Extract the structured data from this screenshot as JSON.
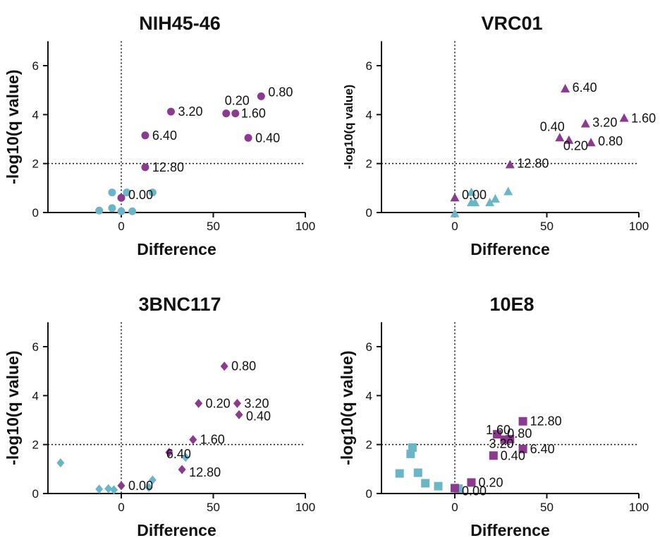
{
  "colors": {
    "significant": "#8B3A8F",
    "nonsignificant": "#6BB6C6"
  },
  "chart_data": [
    {
      "type": "scatter",
      "title": "NIH45-46",
      "xlabel": "Difference",
      "ylabel": "-log10(q value)",
      "xlim": [
        -40,
        100
      ],
      "ylim": [
        0,
        7
      ],
      "xticks": [
        0,
        50,
        100
      ],
      "yticks": [
        0,
        2,
        4,
        6
      ],
      "ref_x": 0,
      "ref_y": 2,
      "marker": "circle",
      "points": [
        {
          "x": 76,
          "y": 4.75,
          "group": "significant",
          "label": "0.80"
        },
        {
          "x": 57,
          "y": 4.05,
          "group": "significant",
          "label": "0.20"
        },
        {
          "x": 62,
          "y": 4.05,
          "group": "significant",
          "label": "1.60"
        },
        {
          "x": 27,
          "y": 4.12,
          "group": "significant",
          "label": "3.20"
        },
        {
          "x": 69,
          "y": 3.05,
          "group": "significant",
          "label": "0.40"
        },
        {
          "x": 13,
          "y": 3.15,
          "group": "significant",
          "label": "6.40"
        },
        {
          "x": 13,
          "y": 1.85,
          "group": "significant",
          "label": "12.80"
        },
        {
          "x": 0,
          "y": 0.6,
          "group": "significant",
          "label": "0.00"
        },
        {
          "x": -5,
          "y": 0.82,
          "group": "nonsignificant"
        },
        {
          "x": 3,
          "y": 0.82,
          "group": "nonsignificant"
        },
        {
          "x": 17,
          "y": 0.82,
          "group": "nonsignificant"
        },
        {
          "x": -5,
          "y": 0.18,
          "group": "nonsignificant"
        },
        {
          "x": -12,
          "y": 0.08,
          "group": "nonsignificant"
        },
        {
          "x": 0,
          "y": 0.05,
          "group": "nonsignificant"
        },
        {
          "x": 6,
          "y": 0.05,
          "group": "nonsignificant"
        }
      ]
    },
    {
      "type": "scatter",
      "title": "VRC01",
      "xlabel": "Difference",
      "ylabel": "-log10(q value)",
      "xlim": [
        -40,
        100
      ],
      "ylim": [
        0,
        7
      ],
      "xticks": [
        0,
        50,
        100
      ],
      "yticks": [
        0,
        2,
        4,
        6
      ],
      "ref_x": 0,
      "ref_y": 2,
      "marker": "triangle",
      "points": [
        {
          "x": 60,
          "y": 5.05,
          "group": "significant",
          "label": "6.40"
        },
        {
          "x": 92,
          "y": 3.85,
          "group": "significant",
          "label": "1.60"
        },
        {
          "x": 71,
          "y": 3.62,
          "group": "significant",
          "label": "3.20"
        },
        {
          "x": 57,
          "y": 3.05,
          "group": "significant",
          "label": "0.40"
        },
        {
          "x": 62,
          "y": 2.95,
          "group": "significant",
          "label": "0.20"
        },
        {
          "x": 74,
          "y": 2.85,
          "group": "significant",
          "label": "0.80"
        },
        {
          "x": 30,
          "y": 1.95,
          "group": "significant",
          "label": "12.80"
        },
        {
          "x": 0,
          "y": 0.6,
          "group": "significant",
          "label": "0.00"
        },
        {
          "x": 9,
          "y": 0.82,
          "group": "nonsignificant"
        },
        {
          "x": 29,
          "y": 0.85,
          "group": "nonsignificant"
        },
        {
          "x": 22,
          "y": 0.55,
          "group": "nonsignificant"
        },
        {
          "x": 19,
          "y": 0.4,
          "group": "nonsignificant"
        },
        {
          "x": 9,
          "y": 0.4,
          "group": "nonsignificant"
        },
        {
          "x": 11,
          "y": 0.4,
          "group": "nonsignificant"
        },
        {
          "x": 0,
          "y": -0.05,
          "group": "nonsignificant"
        }
      ]
    },
    {
      "type": "scatter",
      "title": "3BNC117",
      "xlabel": "Difference",
      "ylabel": "-log10(q value)",
      "xlim": [
        -40,
        100
      ],
      "ylim": [
        0,
        7
      ],
      "xticks": [
        0,
        50,
        100
      ],
      "yticks": [
        0,
        2,
        4,
        6
      ],
      "ref_x": 0,
      "ref_y": 2,
      "marker": "diamond",
      "points": [
        {
          "x": 56,
          "y": 5.2,
          "group": "significant",
          "label": "0.80"
        },
        {
          "x": 42,
          "y": 3.68,
          "group": "significant",
          "label": "0.20"
        },
        {
          "x": 63,
          "y": 3.68,
          "group": "significant",
          "label": "3.20"
        },
        {
          "x": 64,
          "y": 3.22,
          "group": "significant",
          "label": "0.40"
        },
        {
          "x": 39,
          "y": 2.2,
          "group": "significant",
          "label": "1.60"
        },
        {
          "x": 26,
          "y": 1.68,
          "group": "significant",
          "label": "6.40"
        },
        {
          "x": 33,
          "y": 0.98,
          "group": "significant",
          "label": "12.80"
        },
        {
          "x": 0,
          "y": 0.32,
          "group": "significant",
          "label": "0.00"
        },
        {
          "x": -33,
          "y": 1.25,
          "group": "nonsignificant"
        },
        {
          "x": 35,
          "y": 1.48,
          "group": "nonsignificant"
        },
        {
          "x": 17,
          "y": 0.55,
          "group": "nonsignificant"
        },
        {
          "x": 15,
          "y": 0.25,
          "group": "nonsignificant"
        },
        {
          "x": -12,
          "y": 0.18,
          "group": "nonsignificant"
        },
        {
          "x": -7,
          "y": 0.2,
          "group": "nonsignificant"
        },
        {
          "x": -4,
          "y": 0.15,
          "group": "nonsignificant"
        }
      ]
    },
    {
      "type": "scatter",
      "title": "10E8",
      "xlabel": "Difference",
      "ylabel": "-log10(q value)",
      "xlim": [
        -40,
        100
      ],
      "ylim": [
        0,
        7
      ],
      "xticks": [
        0,
        50,
        100
      ],
      "yticks": [
        0,
        2,
        4,
        6
      ],
      "ref_x": 0,
      "ref_y": 2,
      "marker": "square",
      "points": [
        {
          "x": 37,
          "y": 2.95,
          "group": "significant",
          "label": "12.80"
        },
        {
          "x": 23,
          "y": 2.42,
          "group": "significant",
          "label": "1.60"
        },
        {
          "x": 30,
          "y": 2.22,
          "group": "significant",
          "label": "0.80"
        },
        {
          "x": 27,
          "y": 2.2,
          "group": "significant",
          "label": "3.20"
        },
        {
          "x": 37,
          "y": 1.82,
          "group": "significant",
          "label": "6.40"
        },
        {
          "x": 21,
          "y": 1.55,
          "group": "significant",
          "label": "0.40"
        },
        {
          "x": 9,
          "y": 0.45,
          "group": "significant",
          "label": "0.20"
        },
        {
          "x": 0,
          "y": 0.22,
          "group": "significant",
          "label": "0.00"
        },
        {
          "x": -23,
          "y": 1.88,
          "group": "nonsignificant"
        },
        {
          "x": -24,
          "y": 1.62,
          "group": "nonsignificant"
        },
        {
          "x": -30,
          "y": 0.82,
          "group": "nonsignificant"
        },
        {
          "x": -20,
          "y": 0.85,
          "group": "nonsignificant"
        },
        {
          "x": -16,
          "y": 0.42,
          "group": "nonsignificant"
        },
        {
          "x": -9,
          "y": 0.3,
          "group": "nonsignificant"
        },
        {
          "x": 2,
          "y": 0.2,
          "group": "nonsignificant"
        }
      ]
    }
  ]
}
